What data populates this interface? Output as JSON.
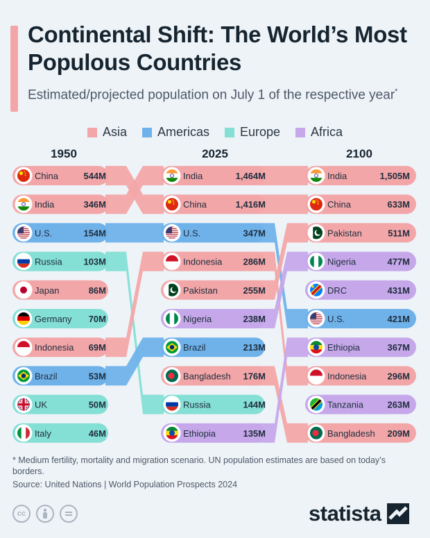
{
  "header": {
    "title": "Continental Shift: The World’s Most Populous Countries",
    "subtitle": "Estimated/projected population on July 1 of the respective year",
    "subtitle_mark": "*"
  },
  "legend": [
    {
      "name": "Asia",
      "color": "#f3a6a8"
    },
    {
      "name": "Americas",
      "color": "#6fb2ea"
    },
    {
      "name": "Europe",
      "color": "#84dfd5"
    },
    {
      "name": "Africa",
      "color": "#c6a8ea"
    }
  ],
  "chart_data": {
    "type": "table",
    "years": [
      "1950",
      "2025",
      "2100"
    ],
    "columns": [
      {
        "year": "1950",
        "rows": [
          {
            "country": "China",
            "value": "544M",
            "region": "Asia",
            "flag": "china-flag"
          },
          {
            "country": "India",
            "value": "346M",
            "region": "Asia",
            "flag": "india-flag"
          },
          {
            "country": "U.S.",
            "value": "154M",
            "region": "Americas",
            "flag": "us-flag"
          },
          {
            "country": "Russia",
            "value": "103M",
            "region": "Europe",
            "flag": "russia-flag"
          },
          {
            "country": "Japan",
            "value": "86M",
            "region": "Asia",
            "flag": "japan-flag"
          },
          {
            "country": "Germany",
            "value": "70M",
            "region": "Europe",
            "flag": "germany-flag"
          },
          {
            "country": "Indonesia",
            "value": "69M",
            "region": "Asia",
            "flag": "indonesia-flag"
          },
          {
            "country": "Brazil",
            "value": "53M",
            "region": "Americas",
            "flag": "brazil-flag"
          },
          {
            "country": "UK",
            "value": "50M",
            "region": "Europe",
            "flag": "uk-flag"
          },
          {
            "country": "Italy",
            "value": "46M",
            "region": "Europe",
            "flag": "italy-flag"
          }
        ]
      },
      {
        "year": "2025",
        "rows": [
          {
            "country": "India",
            "value": "1,464M",
            "region": "Asia",
            "flag": "india-flag"
          },
          {
            "country": "China",
            "value": "1,416M",
            "region": "Asia",
            "flag": "china-flag"
          },
          {
            "country": "U.S.",
            "value": "347M",
            "region": "Americas",
            "flag": "us-flag"
          },
          {
            "country": "Indonesia",
            "value": "286M",
            "region": "Asia",
            "flag": "indonesia-flag"
          },
          {
            "country": "Pakistan",
            "value": "255M",
            "region": "Asia",
            "flag": "pakistan-flag"
          },
          {
            "country": "Nigeria",
            "value": "238M",
            "region": "Africa",
            "flag": "nigeria-flag"
          },
          {
            "country": "Brazil",
            "value": "213M",
            "region": "Americas",
            "flag": "brazil-flag"
          },
          {
            "country": "Bangladesh",
            "value": "176M",
            "region": "Asia",
            "flag": "bangladesh-flag"
          },
          {
            "country": "Russia",
            "value": "144M",
            "region": "Europe",
            "flag": "russia-flag"
          },
          {
            "country": "Ethiopia",
            "value": "135M",
            "region": "Africa",
            "flag": "ethiopia-flag"
          }
        ]
      },
      {
        "year": "2100",
        "rows": [
          {
            "country": "India",
            "value": "1,505M",
            "region": "Asia",
            "flag": "india-flag"
          },
          {
            "country": "China",
            "value": "633M",
            "region": "Asia",
            "flag": "china-flag"
          },
          {
            "country": "Pakistan",
            "value": "511M",
            "region": "Asia",
            "flag": "pakistan-flag"
          },
          {
            "country": "Nigeria",
            "value": "477M",
            "region": "Africa",
            "flag": "nigeria-flag"
          },
          {
            "country": "DRC",
            "value": "431M",
            "region": "Africa",
            "flag": "drc-flag"
          },
          {
            "country": "U.S.",
            "value": "421M",
            "region": "Americas",
            "flag": "us-flag"
          },
          {
            "country": "Ethiopia",
            "value": "367M",
            "region": "Africa",
            "flag": "ethiopia-flag"
          },
          {
            "country": "Indonesia",
            "value": "296M",
            "region": "Asia",
            "flag": "indonesia-flag"
          },
          {
            "country": "Tanzania",
            "value": "263M",
            "region": "Africa",
            "flag": "tanzania-flag"
          },
          {
            "country": "Bangladesh",
            "value": "209M",
            "region": "Asia",
            "flag": "bangladesh-flag"
          }
        ]
      }
    ]
  },
  "footer": {
    "footnote": "* Medium fertility, mortality and migration scenario. UN population estimates are based on today’s borders.",
    "source": "Source: United Nations | World Population Prospects 2024",
    "cc_icons": [
      "cc-icon",
      "attribution-icon",
      "no-derivatives-icon"
    ],
    "logo": "statista"
  }
}
